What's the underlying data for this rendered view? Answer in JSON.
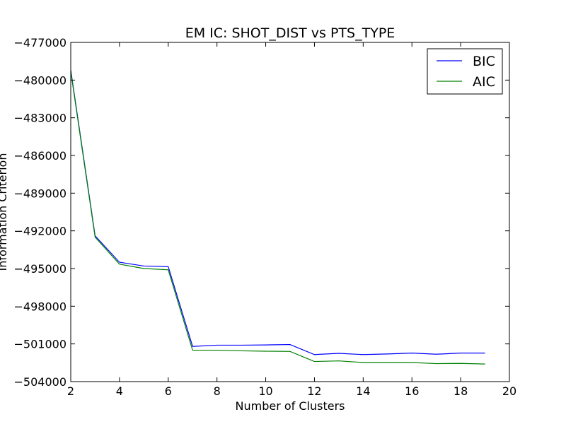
{
  "chart_data": {
    "type": "line",
    "title": "EM IC: SHOT_DIST vs PTS_TYPE",
    "xlabel": "Number of Clusters",
    "ylabel": "Information Criterion",
    "xlim": [
      2,
      20
    ],
    "ylim": [
      -504000,
      -477000
    ],
    "xticks": [
      "2",
      "4",
      "6",
      "8",
      "10",
      "12",
      "14",
      "16",
      "18",
      "20"
    ],
    "yticks": [
      "−477000",
      "−480000",
      "−483000",
      "−486000",
      "−489000",
      "−492000",
      "−495000",
      "−498000",
      "−501000",
      "−504000"
    ],
    "legend_position": "top-right",
    "grid": false,
    "x": [
      2,
      3,
      4,
      5,
      6,
      7,
      8,
      9,
      10,
      11,
      12,
      13,
      14,
      15,
      16,
      17,
      18,
      19
    ],
    "series": [
      {
        "name": "BIC",
        "color": "#0000ff",
        "values": [
          -479200,
          -492400,
          -494500,
          -494800,
          -494850,
          -501200,
          -501100,
          -501100,
          -501080,
          -501050,
          -501850,
          -501750,
          -501850,
          -501800,
          -501730,
          -501820,
          -501730,
          -501730
        ]
      },
      {
        "name": "AIC",
        "color": "#008000",
        "values": [
          -479300,
          -492500,
          -494650,
          -495000,
          -495100,
          -501500,
          -501500,
          -501550,
          -501580,
          -501600,
          -502400,
          -502350,
          -502480,
          -502480,
          -502480,
          -502570,
          -502550,
          -502600
        ]
      }
    ]
  }
}
